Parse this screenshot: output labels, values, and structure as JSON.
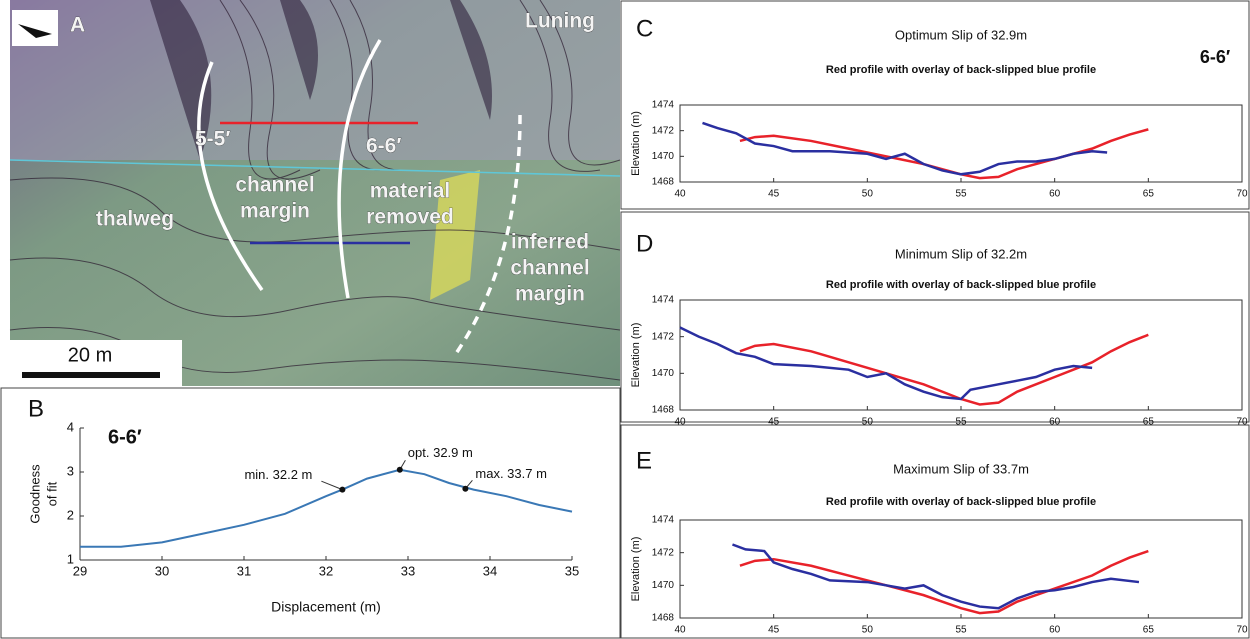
{
  "map": {
    "panel": "A",
    "place": "Luning",
    "profile_55": "5-5′",
    "profile_66": "6-6′",
    "channel_margin": [
      "channel",
      "margin"
    ],
    "thalweg": "thalweg",
    "material_removed": [
      "material",
      "removed"
    ],
    "inferred_margin": [
      "inferred",
      "channel",
      "margin"
    ],
    "scale": "20 m"
  },
  "chart_data": [
    {
      "type": "line",
      "panel": "B",
      "title": "6-6′",
      "x_label": "Displacement (m)",
      "y_label": [
        "Goodness",
        "of fit"
      ],
      "xlim": [
        29,
        35
      ],
      "xticks": [
        29,
        30,
        31,
        32,
        33,
        34,
        35
      ],
      "ylim": [
        1,
        4
      ],
      "yticks": [
        1,
        2,
        3,
        4
      ],
      "series": [
        {
          "color": "#3a78b5",
          "x": [
            29,
            29.5,
            30,
            30.5,
            31,
            31.5,
            32,
            32.2,
            32.5,
            32.9,
            33.2,
            33.5,
            33.8,
            34.2,
            34.6,
            35
          ],
          "values": [
            1.3,
            1.3,
            1.4,
            1.6,
            1.8,
            2.05,
            2.45,
            2.6,
            2.85,
            3.05,
            2.95,
            2.75,
            2.6,
            2.45,
            2.25,
            2.1
          ]
        }
      ],
      "points": {
        "x": [
          32.2,
          32.9,
          33.7
        ],
        "values": [
          2.6,
          3.05,
          2.62
        ],
        "labels": [
          "min. 32.2 m",
          "opt. 32.9 m",
          "max. 33.7 m"
        ]
      }
    },
    {
      "type": "line",
      "panel": "C",
      "title": "Optimum Slip of 32.9m",
      "subtitle": "Red profile with overlay of back-slipped blue profile",
      "note": "6-6′",
      "y_label": "Elevation (m)",
      "xlim": [
        40,
        70
      ],
      "xticks": [
        40,
        45,
        50,
        55,
        60,
        65,
        70
      ],
      "ylim": [
        1468,
        1474
      ],
      "yticks": [
        1468,
        1470,
        1472,
        1474
      ],
      "series": [
        {
          "color": "#e8222a",
          "x": [
            43.2,
            44,
            45,
            47,
            49,
            51,
            53,
            55,
            56,
            57,
            58,
            60,
            62,
            63,
            64,
            65
          ],
          "values": [
            1471.2,
            1471.5,
            1471.6,
            1471.2,
            1470.6,
            1470.0,
            1469.4,
            1468.6,
            1468.3,
            1468.4,
            1469.0,
            1469.8,
            1470.6,
            1471.2,
            1471.7,
            1472.1
          ]
        },
        {
          "color": "#2a2fa0",
          "x": [
            41.2,
            42,
            43,
            44,
            45,
            46,
            48,
            50,
            51,
            52,
            53,
            54,
            55,
            56,
            57,
            58,
            59,
            60,
            61,
            62,
            62.8
          ],
          "values": [
            1472.6,
            1472.2,
            1471.8,
            1471.0,
            1470.8,
            1470.4,
            1470.4,
            1470.2,
            1469.8,
            1470.2,
            1469.4,
            1468.9,
            1468.6,
            1468.8,
            1469.4,
            1469.6,
            1469.6,
            1469.8,
            1470.2,
            1470.4,
            1470.3
          ]
        }
      ]
    },
    {
      "type": "line",
      "panel": "D",
      "title": "Minimum Slip of 32.2m",
      "subtitle": "Red profile with overlay of back-slipped blue profile",
      "y_label": "Elevation (m)",
      "xlim": [
        40,
        70
      ],
      "xticks": [
        40,
        45,
        50,
        55,
        60,
        65,
        70
      ],
      "ylim": [
        1468,
        1474
      ],
      "yticks": [
        1468,
        1470,
        1472,
        1474
      ],
      "series": [
        {
          "color": "#e8222a",
          "x": [
            43.2,
            44,
            45,
            47,
            49,
            51,
            53,
            55,
            56,
            57,
            58,
            60,
            62,
            63,
            64,
            65
          ],
          "values": [
            1471.2,
            1471.5,
            1471.6,
            1471.2,
            1470.6,
            1470.0,
            1469.4,
            1468.6,
            1468.3,
            1468.4,
            1469.0,
            1469.8,
            1470.6,
            1471.2,
            1471.7,
            1472.1
          ]
        },
        {
          "color": "#2a2fa0",
          "x": [
            40,
            41,
            42,
            43,
            44,
            45,
            47,
            49,
            50,
            51,
            52,
            53,
            54,
            55,
            55.5,
            57,
            58,
            59,
            60,
            61,
            62
          ],
          "values": [
            1472.5,
            1472.0,
            1471.6,
            1471.1,
            1470.9,
            1470.5,
            1470.4,
            1470.2,
            1469.8,
            1470.0,
            1469.4,
            1469.0,
            1468.7,
            1468.6,
            1469.1,
            1469.4,
            1469.6,
            1469.8,
            1470.2,
            1470.4,
            1470.3
          ]
        }
      ]
    },
    {
      "type": "line",
      "panel": "E",
      "title": "Maximum Slip of 33.7m",
      "subtitle": "Red profile with overlay of back-slipped blue profile",
      "y_label": "Elevation (m)",
      "xlim": [
        40,
        70
      ],
      "xticks": [
        40,
        45,
        50,
        55,
        60,
        65,
        70
      ],
      "ylim": [
        1468,
        1474
      ],
      "yticks": [
        1468,
        1470,
        1472,
        1474
      ],
      "series": [
        {
          "color": "#e8222a",
          "x": [
            43.2,
            44,
            45,
            47,
            49,
            51,
            53,
            55,
            56,
            57,
            58,
            60,
            62,
            63,
            64,
            65
          ],
          "values": [
            1471.2,
            1471.5,
            1471.6,
            1471.2,
            1470.6,
            1470.0,
            1469.4,
            1468.6,
            1468.3,
            1468.4,
            1469.0,
            1469.8,
            1470.6,
            1471.2,
            1471.7,
            1472.1
          ]
        },
        {
          "color": "#2a2fa0",
          "x": [
            42.8,
            43.5,
            44.5,
            45,
            46,
            47,
            48,
            50,
            52,
            53,
            54,
            55,
            56,
            57,
            58,
            59,
            60,
            61,
            62,
            63,
            64.5
          ],
          "values": [
            1472.5,
            1472.2,
            1472.1,
            1471.4,
            1471.0,
            1470.7,
            1470.3,
            1470.2,
            1469.8,
            1470.0,
            1469.4,
            1469.0,
            1468.7,
            1468.6,
            1469.2,
            1469.6,
            1469.7,
            1469.9,
            1470.2,
            1470.4,
            1470.2
          ]
        }
      ]
    }
  ]
}
